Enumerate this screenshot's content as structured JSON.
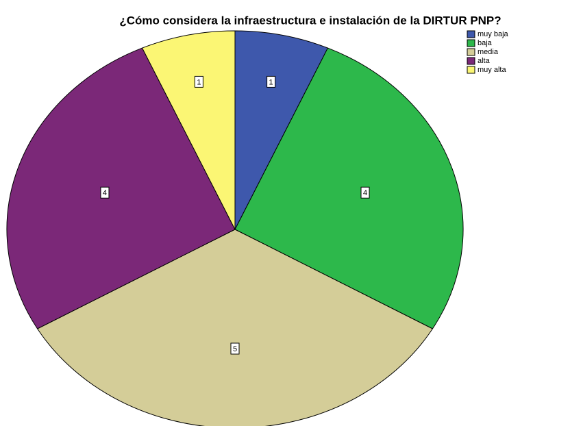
{
  "chart_data": {
    "type": "pie",
    "title": "¿Cómo considera la infraestructura e instalación de la DIRTUR PNP?",
    "categories": [
      "muy baja",
      "baja",
      "media",
      "alta",
      "muy alta"
    ],
    "values": [
      1,
      4,
      5,
      4,
      1
    ],
    "colors": [
      "#3e58ac",
      "#2db84b",
      "#d4cd98",
      "#7b2878",
      "#fbf674"
    ],
    "legend": "top-right"
  }
}
